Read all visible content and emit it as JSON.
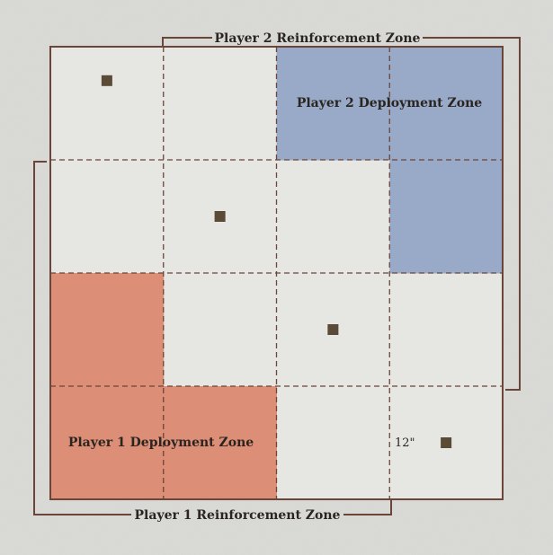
{
  "colors": {
    "background": "#dcdcd9",
    "board": "#e6e6e3",
    "border": "#6b4537",
    "grid": "#6b4537",
    "player1_zone": "#dc8e77",
    "player2_zone": "#98aac8",
    "objective": "#5a4a36"
  },
  "labels": {
    "player2_reinforcement": "Player 2 Reinforcement Zone",
    "player2_deployment": "Player 2 Deployment Zone",
    "player1_deployment": "Player 1 Deployment Zone",
    "player1_reinforcement": "Player 1 Reinforcement Zone",
    "measurement": "12\""
  },
  "board": {
    "columns": 4,
    "rows": 4
  },
  "deployment_zones": {
    "player2": [
      [
        2,
        0
      ],
      [
        3,
        0
      ],
      [
        3,
        1
      ]
    ],
    "player1": [
      [
        0,
        2
      ],
      [
        0,
        3
      ],
      [
        1,
        3
      ]
    ]
  },
  "objectives": [
    {
      "col": 0.5,
      "row": 0.3
    },
    {
      "col": 1.5,
      "row": 1.5
    },
    {
      "col": 2.5,
      "row": 2.5
    },
    {
      "col": 3.5,
      "row": 3.5
    }
  ],
  "icons": {
    "objective": "square-marker-icon"
  }
}
